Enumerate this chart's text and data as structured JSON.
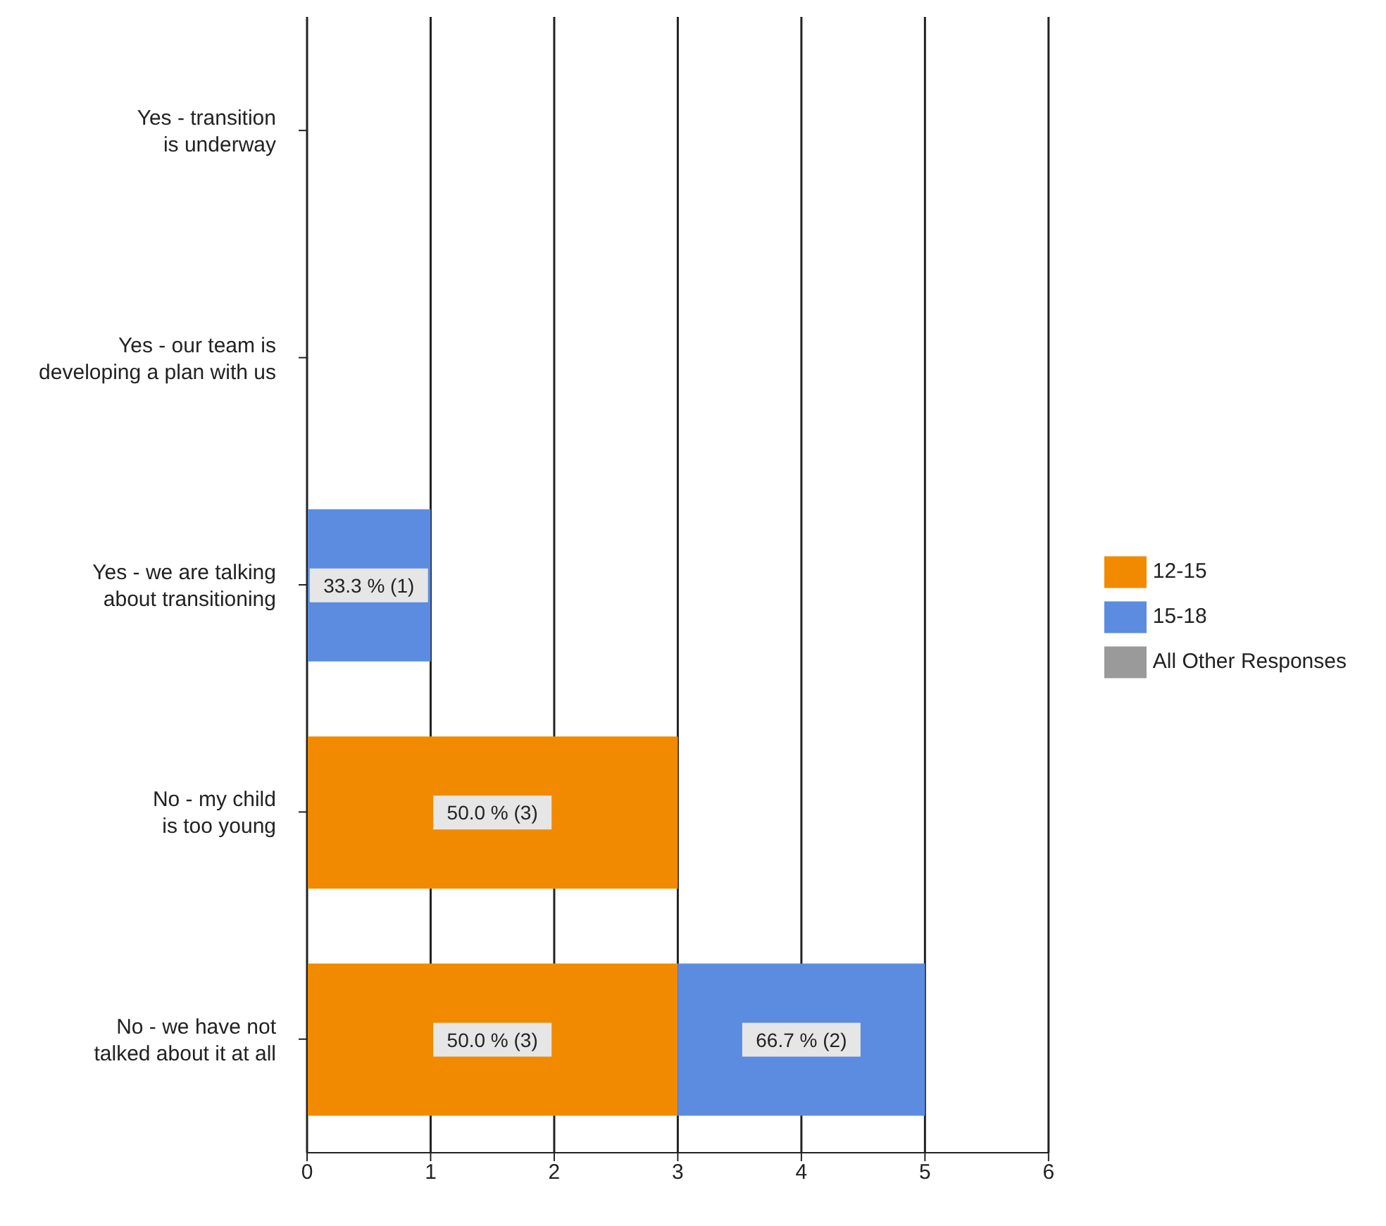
{
  "chart_data": {
    "type": "bar",
    "orientation": "horizontal",
    "stacked": true,
    "categories": [
      "Yes - transition is underway",
      "Yes - our team is developing a plan with us",
      "Yes - we are talking about transitioning",
      "No - my child is too young",
      "No - we have not talked about it at all"
    ],
    "series": [
      {
        "name": "12-15",
        "color": "#f28a00",
        "values": [
          0,
          0,
          0,
          3,
          3
        ],
        "value_labels": [
          null,
          null,
          null,
          "50.0 % (3)",
          "50.0 % (3)"
        ]
      },
      {
        "name": "15-18",
        "color": "#5b8ce0",
        "values": [
          0,
          0,
          1,
          0,
          2
        ],
        "value_labels": [
          null,
          null,
          "33.3 % (1)",
          null,
          "66.7 % (2)"
        ]
      },
      {
        "name": "All Other Responses",
        "color": "#9a9a9a",
        "values": [
          0,
          0,
          0,
          0,
          0
        ]
      }
    ],
    "xlim": [
      0,
      6
    ],
    "xticks": [
      0,
      1,
      2,
      3,
      4,
      5,
      6
    ],
    "grid": "x",
    "legend": "right"
  }
}
